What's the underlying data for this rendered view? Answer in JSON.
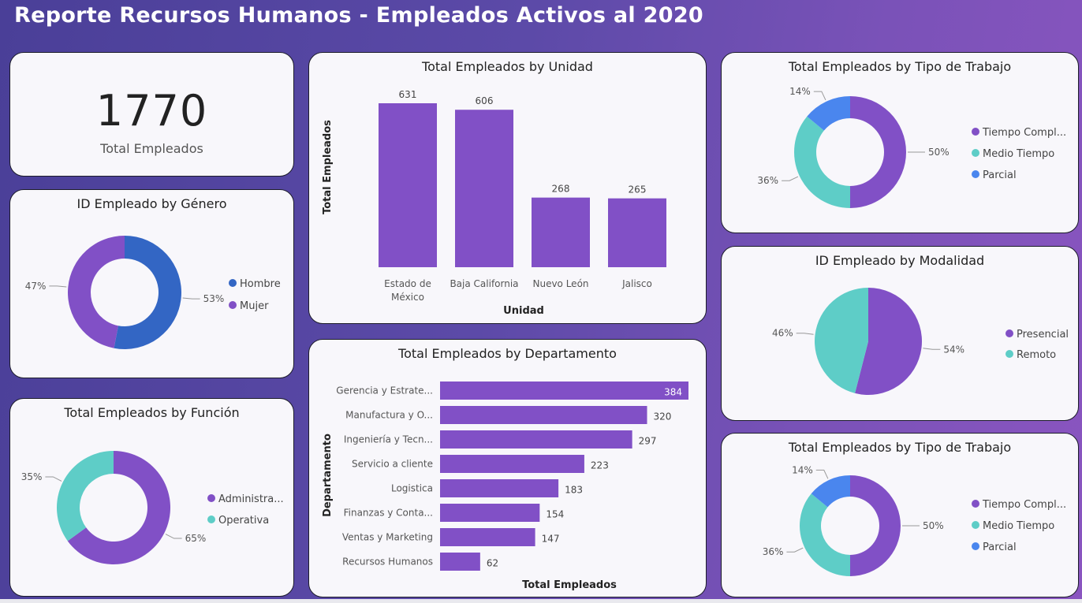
{
  "header": {
    "title": "Reporte Recursos Humanos - Empleados Activos al 2020"
  },
  "colors": {
    "purple": "#8150c6",
    "blue": "#3366c4",
    "teal": "#5ecdc7",
    "lightblue": "#4a86ee"
  },
  "kpi": {
    "value": "1770",
    "label": "Total Empleados"
  },
  "chart_data": [
    {
      "id": "genero",
      "type": "pie",
      "variant": "donut",
      "title": "ID Empleado by Género",
      "categories": [
        "Hombre",
        "Mujer"
      ],
      "values": [
        53,
        47
      ],
      "value_labels": [
        "53%",
        "47%"
      ],
      "colors": [
        "#3366c4",
        "#8150c6"
      ],
      "legend": "right"
    },
    {
      "id": "funcion",
      "type": "pie",
      "variant": "donut",
      "title": "Total Empleados by Función",
      "categories": [
        "Administra...",
        "Operativa"
      ],
      "values": [
        65,
        35
      ],
      "value_labels": [
        "65%",
        "35%"
      ],
      "colors": [
        "#8150c6",
        "#5ecdc7"
      ],
      "legend": "right"
    },
    {
      "id": "unidad",
      "type": "bar",
      "title": "Total Empleados by Unidad",
      "categories": [
        "Estado de México",
        "Baja California",
        "Nuevo León",
        "Jalisco"
      ],
      "category_lines": [
        [
          "Estado de",
          "México"
        ],
        [
          "Baja California"
        ],
        [
          "Nuevo León"
        ],
        [
          "Jalisco"
        ]
      ],
      "values": [
        631,
        606,
        268,
        265
      ],
      "xlabel": "Unidad",
      "ylabel": "Total Empleados",
      "ylim": [
        0,
        631
      ],
      "color": "#8150c6"
    },
    {
      "id": "departamento",
      "type": "bar",
      "orientation": "horizontal",
      "title": "Total Empleados by Departamento",
      "categories": [
        "Gerencia y Estrate...",
        "Manufactura y O...",
        "Ingeniería y Tecn...",
        "Servicio a cliente",
        "Logistica",
        "Finanzas y Conta...",
        "Ventas y Marketing",
        "Recursos Humanos"
      ],
      "values": [
        384,
        320,
        297,
        223,
        183,
        154,
        147,
        62
      ],
      "xlabel": "Total Empleados",
      "ylabel": "Departamento",
      "xlim": [
        0,
        384
      ],
      "color": "#8150c6"
    },
    {
      "id": "tipo1",
      "type": "pie",
      "variant": "donut",
      "title": "Total Empleados by Tipo de Trabajo",
      "categories": [
        "Tiempo Compl...",
        "Medio Tiempo",
        "Parcial"
      ],
      "values": [
        50,
        36,
        14
      ],
      "value_labels": [
        "50%",
        "36%",
        "14%"
      ],
      "colors": [
        "#8150c6",
        "#5ecdc7",
        "#4a86ee"
      ],
      "legend": "right"
    },
    {
      "id": "modalidad",
      "type": "pie",
      "title": "ID Empleado by Modalidad",
      "categories": [
        "Presencial",
        "Remoto"
      ],
      "values": [
        54,
        46
      ],
      "value_labels": [
        "54%",
        "46%"
      ],
      "colors": [
        "#8150c6",
        "#5ecdc7"
      ],
      "legend": "right"
    },
    {
      "id": "tipo2",
      "type": "pie",
      "variant": "donut",
      "title": "Total Empleados by Tipo de Trabajo",
      "categories": [
        "Tiempo Compl...",
        "Medio Tiempo",
        "Parcial"
      ],
      "values": [
        50,
        36,
        14
      ],
      "value_labels": [
        "50%",
        "36%",
        "14%"
      ],
      "colors": [
        "#8150c6",
        "#5ecdc7",
        "#4a86ee"
      ],
      "legend": "right"
    }
  ]
}
